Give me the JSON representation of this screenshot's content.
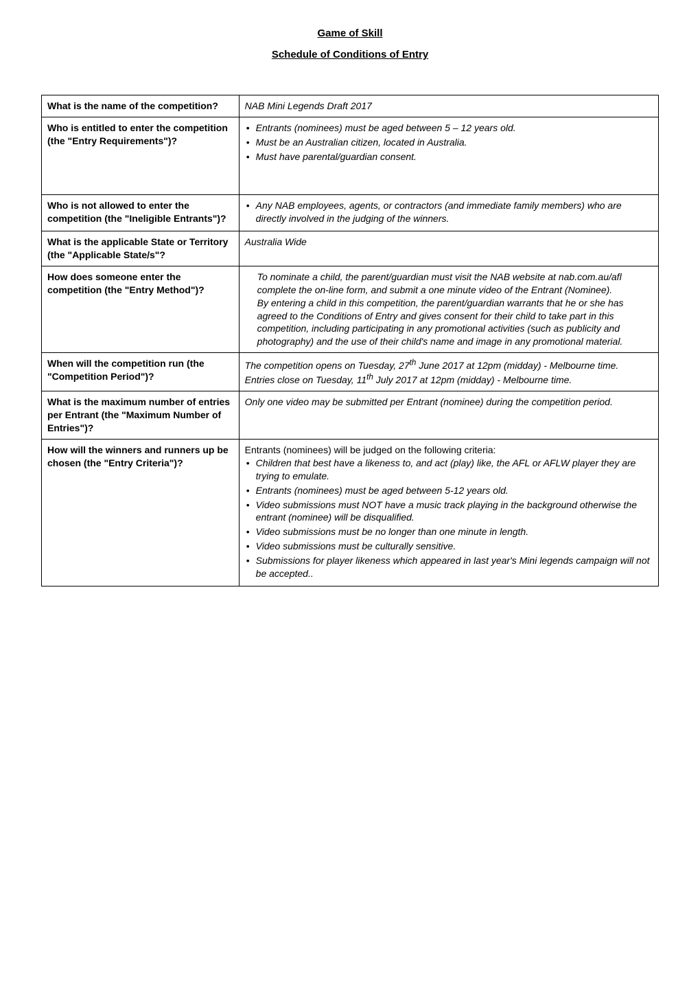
{
  "doc": {
    "title": "Game of Skill",
    "subtitle": "Schedule of Conditions of Entry"
  },
  "rows": [
    {
      "label": "What is the name of the competition?",
      "content_type": "text",
      "text": "NAB Mini Legends Draft 2017"
    },
    {
      "label": "Who is entitled to enter the competition (the \"Entry Requirements\")?",
      "content_type": "bullets",
      "bullets": [
        "Entrants (nominees) must be aged between 5 – 12 years old.",
        "Must be an Australian citizen, located in Australia.",
        "Must have parental/guardian consent."
      ]
    },
    {
      "label": "Who is not allowed to enter the competition (the \"Ineligible Entrants\")?",
      "content_type": "bullets",
      "bullets": [
        "Any NAB employees, agents, or contractors (and immediate family members) who are directly involved in the judging of the winners."
      ]
    },
    {
      "label": "What is the applicable State or Territory (the \"Applicable State/s\"?",
      "content_type": "text",
      "text": "Australia Wide"
    },
    {
      "label": "How does someone enter the competition (the \"Entry Method\")?",
      "content_type": "custom_entry"
    },
    {
      "label": "When will the competition run (the \"Competition Period\")?",
      "content_type": "custom_period"
    },
    {
      "label": "What is the maximum number of entries per Entrant (the \"Maximum Number of Entries\")?",
      "content_type": "text",
      "text": "Only one video may be submitted per Entrant (nominee) during the competition period."
    },
    {
      "label": "How will the winners and runners up be chosen (the \"Entry Criteria\")?",
      "content_type": "custom_winners"
    }
  ],
  "entry_method": {
    "p1": "To nominate a child, the parent/guardian must visit the NAB website at nab.com.au/afl  complete the on-line form, and submit a one minute video of the Entrant (Nominee).",
    "p2": "By entering a child in this competition, the parent/guardian warrants that he or she has agreed to the Conditions of Entry and gives consent for their child to  take  part in this competition, including participating in any promotional activities (such as publicity and photography) and the use of their child's name and image in any promotional material."
  },
  "period": {
    "line1_a": "The competition opens on Tuesday, 27",
    "line1_sup": "th",
    "line1_b": " June 2017 at 12pm (midday) - Melbourne time.",
    "line2_a": "Entries close on Tuesday, 11",
    "line2_sup": "th",
    "line2_b": " July 2017 at 12pm (midday) - Melbourne time."
  },
  "winners": {
    "intro": "Entrants (nominees) will be judged on the following criteria:",
    "bullets": [
      "Children that best have a likeness to, and act (play) like, the AFL or AFLW player they are trying to emulate.",
      "Entrants (nominees) must be aged between 5-12 years old.",
      "Video submissions must NOT have a music track playing in the background otherwise the entrant (nominee) will be disqualified.",
      "Video submissions must be no longer than one minute in length.",
      "Video submissions must be culturally sensitive.",
      "Submissions for player likeness which appeared in last year's Mini legends campaign will not be accepted.."
    ]
  },
  "colors": {
    "text": "#000000",
    "border": "#000000",
    "background": "#ffffff"
  },
  "fontsizes": {
    "title": 15,
    "body": 14
  }
}
